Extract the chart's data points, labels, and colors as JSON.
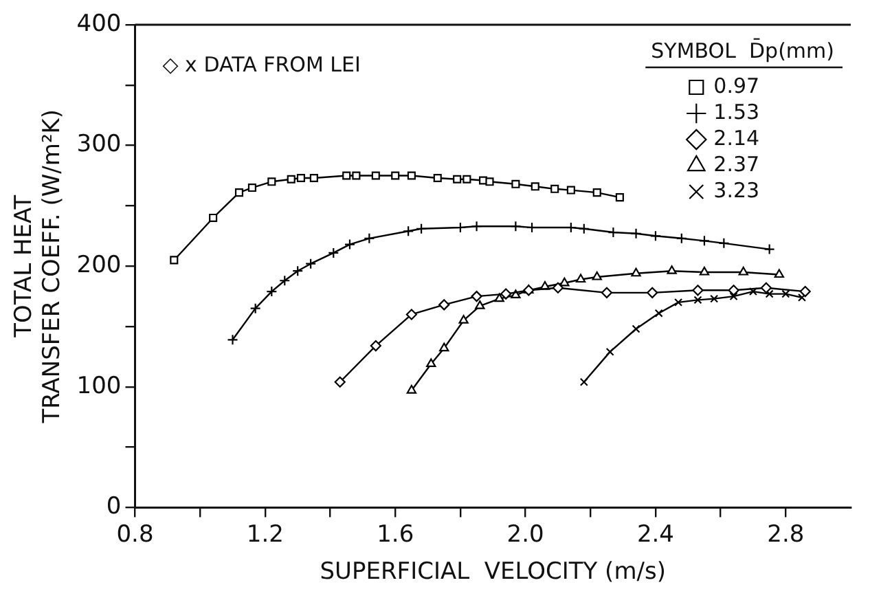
{
  "chart_data": {
    "type": "line",
    "xlabel": "SUPERFICIAL  VELOCITY (m/s)",
    "ylabel": "TOTAL HEAT\nTRANSFER COEFF. (W/m²K)",
    "legend_title": "SYMBOL  D̄p(mm)",
    "legend": "top right",
    "grid": false,
    "annotations": [
      "◇ x DATA FROM LEI"
    ],
    "xlim": [
      0.8,
      3.0
    ],
    "xticks": [
      0.8,
      {
        "value": 1.0,
        "label": null
      },
      1.2,
      {
        "value": 1.4,
        "label": null
      },
      1.6,
      {
        "value": 1.8,
        "label": null
      },
      {
        "value": 2.0,
        "label": "2.0"
      },
      {
        "value": 2.2,
        "label": null
      },
      2.4,
      {
        "value": 2.6,
        "label": null
      },
      2.8
    ],
    "ylim": [
      0,
      400
    ],
    "yticks": [
      0,
      {
        "value": 50,
        "label": null
      },
      100,
      {
        "value": 150,
        "label": null
      },
      200,
      {
        "value": 250,
        "label": null
      },
      300,
      {
        "value": 350,
        "label": null
      },
      400
    ],
    "series": [
      {
        "name": "0.97",
        "color": "#000000",
        "marker": "square",
        "x": [
          0.92,
          1.04,
          1.12,
          1.16,
          1.22,
          1.28,
          1.31,
          1.35,
          1.45,
          1.48,
          1.54,
          1.6,
          1.65,
          1.73,
          1.79,
          1.82,
          1.87,
          1.89,
          1.97,
          2.03,
          2.09,
          2.14,
          2.22,
          2.29
        ],
        "values": [
          205,
          240,
          261,
          265,
          270,
          272,
          273,
          273,
          275,
          275,
          275,
          275,
          275,
          273,
          272,
          272,
          271,
          270,
          268,
          266,
          264,
          263,
          261,
          257
        ]
      },
      {
        "name": "1.53",
        "color": "#000000",
        "marker": "plus",
        "x": [
          1.1,
          1.17,
          1.22,
          1.26,
          1.3,
          1.34,
          1.41,
          1.46,
          1.52,
          1.64,
          1.68,
          1.8,
          1.85,
          1.97,
          2.02,
          2.14,
          2.18,
          2.27,
          2.34,
          2.4,
          2.48,
          2.55,
          2.61,
          2.75
        ],
        "values": [
          139,
          165,
          179,
          188,
          196,
          202,
          211,
          218,
          223,
          229,
          231,
          232,
          233,
          233,
          232,
          232,
          231,
          228,
          227,
          225,
          223,
          221,
          219,
          214
        ]
      },
      {
        "name": "2.14",
        "color": "#000000",
        "marker": "diamond",
        "x": [
          1.43,
          1.54,
          1.65,
          1.75,
          1.85,
          1.94,
          2.01,
          2.1,
          2.25,
          2.39,
          2.53,
          2.64,
          2.74,
          2.86
        ],
        "values": [
          104,
          134,
          160,
          168,
          175,
          177,
          180,
          182,
          178,
          178,
          180,
          180,
          182,
          179
        ]
      },
      {
        "name": "2.37",
        "color": "#000000",
        "marker": "triangle",
        "x": [
          1.65,
          1.71,
          1.75,
          1.81,
          1.86,
          1.92,
          1.97,
          2.01,
          2.06,
          2.12,
          2.17,
          2.22,
          2.34,
          2.45,
          2.55,
          2.67,
          2.78
        ],
        "values": [
          97,
          119,
          132,
          155,
          167,
          173,
          176,
          180,
          183,
          186,
          189,
          191,
          194,
          196,
          195,
          195,
          193
        ]
      },
      {
        "name": "3.23",
        "color": "#000000",
        "marker": "cross",
        "x": [
          2.18,
          2.26,
          2.34,
          2.41,
          2.47,
          2.53,
          2.58,
          2.64,
          2.7,
          2.75,
          2.8,
          2.85
        ],
        "values": [
          104,
          129,
          148,
          161,
          170,
          172,
          173,
          175,
          179,
          177,
          177,
          174
        ]
      }
    ]
  }
}
